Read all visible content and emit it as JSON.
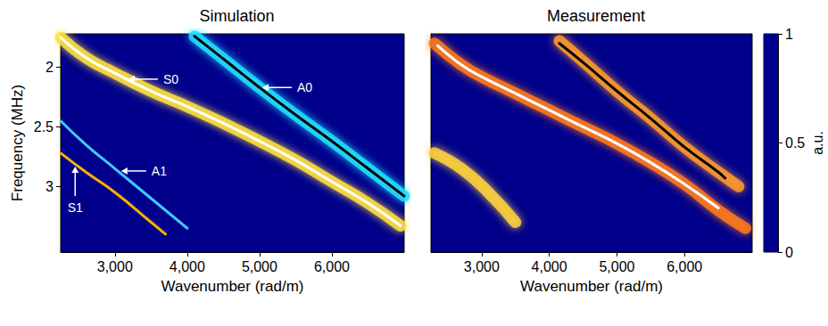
{
  "chart_data": [
    {
      "type": "line",
      "title": "Simulation",
      "xlabel": "Wavenumber (rad/m)",
      "ylabel": "Frequency (MHz)",
      "xlim": [
        2250,
        7000
      ],
      "xticks": [
        3000,
        4000,
        5000,
        6000
      ],
      "ylim": [
        1.72,
        3.55
      ],
      "yticks": [
        2,
        2.5,
        3
      ],
      "grid": false,
      "series": [
        {
          "color": "#ffe040",
          "line_style": "band",
          "x": [
            2250,
            2600,
            3000,
            3500,
            4000,
            4500,
            5000,
            5500,
            6000,
            6500,
            6950
          ],
          "values": [
            1.75,
            1.92,
            2.05,
            2.2,
            2.33,
            2.47,
            2.62,
            2.78,
            2.96,
            3.14,
            3.33
          ]
        },
        {
          "color": "#ffffff",
          "line_style": "solid",
          "x": [
            2250,
            2600,
            3000,
            3500,
            4000,
            4500,
            5000,
            5500,
            6000,
            6500,
            6950
          ],
          "values": [
            1.75,
            1.92,
            2.05,
            2.2,
            2.33,
            2.47,
            2.62,
            2.78,
            2.96,
            3.14,
            3.33
          ]
        },
        {
          "color": "#20e0ff",
          "line_style": "band",
          "x": [
            4100,
            4500,
            5000,
            5500,
            6000,
            6500,
            7000
          ],
          "values": [
            1.74,
            1.93,
            2.17,
            2.4,
            2.62,
            2.85,
            3.08
          ]
        },
        {
          "color": "#000000",
          "line_style": "solid",
          "x": [
            4100,
            4500,
            5000,
            5500,
            6000,
            6500,
            7000
          ],
          "values": [
            1.74,
            1.93,
            2.17,
            2.4,
            2.62,
            2.85,
            3.08
          ]
        },
        {
          "color": "#40c8ff",
          "line_style": "solid",
          "x": [
            2250,
            2600,
            3000,
            3500,
            4000
          ],
          "values": [
            2.45,
            2.65,
            2.85,
            3.1,
            3.35
          ]
        },
        {
          "color": "#ffb000",
          "line_style": "solid",
          "x": [
            2250,
            2600,
            3000,
            3500,
            3700
          ],
          "values": [
            2.72,
            2.88,
            3.05,
            3.3,
            3.4
          ]
        }
      ],
      "annotations": [
        {
          "text": "S0",
          "x": 3150,
          "y": 2.1
        },
        {
          "text": "A0",
          "x": 5000,
          "y": 2.17
        },
        {
          "text": "A1",
          "x": 3050,
          "y": 2.87
        },
        {
          "text": "S1",
          "x": 2450,
          "y": 2.81
        }
      ]
    },
    {
      "type": "line",
      "title": "Measurement",
      "xlabel": "Wavenumber (rad/m)",
      "xlim": [
        2250,
        7000
      ],
      "xticks": [
        3000,
        4000,
        5000,
        6000
      ],
      "ylim": [
        1.72,
        3.55
      ],
      "yticks": [
        2,
        2.5,
        3
      ],
      "grid": false,
      "tick_labels": "x",
      "series": [
        {
          "color": "#ffd23c",
          "line_style": "band",
          "x": [
            2300,
            2700,
            3100,
            3500
          ],
          "values": [
            2.72,
            2.85,
            3.05,
            3.3
          ]
        },
        {
          "color": "#ff7a1a",
          "line_style": "band",
          "x": [
            2300,
            2700,
            3000,
            3500,
            4000,
            4500,
            5000,
            5500,
            6000,
            6500,
            6900
          ],
          "values": [
            1.8,
            1.98,
            2.08,
            2.22,
            2.36,
            2.5,
            2.64,
            2.8,
            2.98,
            3.2,
            3.35
          ]
        },
        {
          "color": "#ff9a2a",
          "line_style": "band",
          "x": [
            4150,
            4500,
            5000,
            5500,
            6000,
            6500,
            6800
          ],
          "values": [
            1.78,
            1.95,
            2.2,
            2.43,
            2.67,
            2.88,
            3.0
          ]
        },
        {
          "color": "#ffffff",
          "line_style": "solid",
          "x": [
            2350,
            2700,
            3000,
            3500,
            4000,
            4500,
            5000,
            5500,
            6000,
            6500
          ],
          "values": [
            1.82,
            1.98,
            2.08,
            2.22,
            2.36,
            2.5,
            2.64,
            2.8,
            2.98,
            3.18
          ]
        },
        {
          "color": "#000000",
          "line_style": "solid",
          "x": [
            4150,
            4500,
            5000,
            5500,
            6000,
            6500,
            6600
          ],
          "values": [
            1.8,
            1.96,
            2.2,
            2.43,
            2.67,
            2.88,
            2.93
          ]
        }
      ],
      "colorbar": {
        "range": [
          0,
          1
        ],
        "ticks": [
          0,
          0.5,
          1
        ],
        "label": "a.u."
      }
    }
  ]
}
